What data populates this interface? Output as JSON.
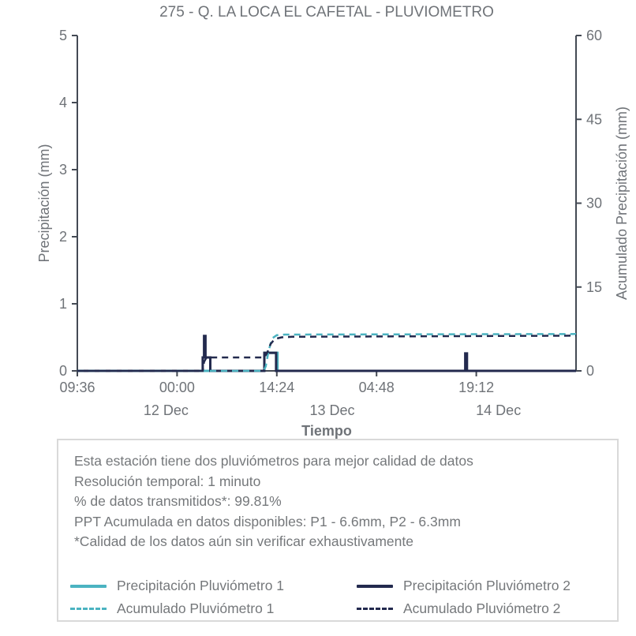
{
  "title": "275 - Q. LA LOCA EL CAFETAL - PLUVIOMETRO",
  "colors": {
    "teal": "#4BB3C1",
    "navy": "#232A4E",
    "text_gray": "#6F7378",
    "axis_gray": "#444A54",
    "border_gray": "#D9D9D9"
  },
  "chart_data": {
    "type": "line",
    "title": "275 - Q. LA LOCA EL CAFETAL - PLUVIOMETRO",
    "xlabel": "Tiempo",
    "ylabel_left": "Precipitación (mm)",
    "ylabel_right": "Acumulado Precipitación (mm)",
    "ylim_left": [
      0,
      5
    ],
    "ylim_right": [
      0,
      60
    ],
    "grid": "off",
    "legend_position": "bottom-box",
    "x_hours_total": 72,
    "x_ticks": [
      {
        "t": 0.0,
        "label": "09:36"
      },
      {
        "t": 14.4,
        "label": "00:00"
      },
      {
        "t": 28.8,
        "label": "14:24"
      },
      {
        "t": 43.2,
        "label": "04:48"
      },
      {
        "t": 57.6,
        "label": "19:12"
      }
    ],
    "x_date_labels": [
      {
        "t": 12.8,
        "label": "12 Dec"
      },
      {
        "t": 36.8,
        "label": "13 Dec"
      },
      {
        "t": 60.8,
        "label": "14 Dec"
      }
    ],
    "y_ticks_left": [
      "0",
      "1",
      "2",
      "3",
      "4",
      "5"
    ],
    "y_ticks_left_values": [
      0,
      1,
      2,
      3,
      4,
      5
    ],
    "y_ticks_right": [
      "0",
      "15",
      "30",
      "45",
      "60"
    ],
    "y_ticks_right_values": [
      0,
      15,
      30,
      45,
      60
    ],
    "series": [
      {
        "name": "Precipitación Pluviómetro 1",
        "axis": "left",
        "style": "solid",
        "color": "teal",
        "width": 3,
        "points": [
          [
            0,
            0
          ],
          [
            27.0,
            0
          ],
          [
            27.0,
            0.27
          ],
          [
            28.9,
            0.27
          ],
          [
            28.9,
            0
          ],
          [
            72,
            0
          ]
        ]
      },
      {
        "name": "Precipitación Pluviómetro 2",
        "axis": "left",
        "style": "solid",
        "color": "navy",
        "width": 3,
        "points": [
          [
            0,
            0
          ],
          [
            18.1,
            0
          ],
          [
            18.1,
            0.2
          ],
          [
            18.3,
            0.2
          ],
          [
            18.3,
            0.52
          ],
          [
            18.5,
            0.52
          ],
          [
            18.5,
            0.2
          ],
          [
            19.2,
            0.2
          ],
          [
            19.2,
            0
          ],
          [
            27.0,
            0
          ],
          [
            27.0,
            0.27
          ],
          [
            28.7,
            0.27
          ],
          [
            28.7,
            0
          ],
          [
            56.0,
            0
          ],
          [
            56.0,
            0.26
          ],
          [
            56.25,
            0.26
          ],
          [
            56.25,
            0
          ],
          [
            72,
            0
          ]
        ]
      },
      {
        "name": "Acumulado Pluviómetro 1",
        "axis": "right",
        "style": "dashed",
        "color": "teal",
        "width": 2.5,
        "points": [
          [
            0,
            0
          ],
          [
            26.9,
            0
          ],
          [
            27.2,
            0.8
          ],
          [
            27.6,
            3.5
          ],
          [
            28.1,
            5.8
          ],
          [
            28.8,
            6.4
          ],
          [
            30,
            6.5
          ],
          [
            72,
            6.6
          ]
        ]
      },
      {
        "name": "Acumulado Pluviómetro 2",
        "axis": "right",
        "style": "dashed",
        "color": "navy",
        "width": 2.5,
        "points": [
          [
            0,
            0
          ],
          [
            18.1,
            0
          ],
          [
            18.3,
            1.6
          ],
          [
            18.6,
            2.3
          ],
          [
            18.9,
            2.4
          ],
          [
            27.0,
            2.4
          ],
          [
            27.4,
            3.2
          ],
          [
            27.9,
            4.8
          ],
          [
            28.5,
            5.7
          ],
          [
            29.5,
            6.0
          ],
          [
            31,
            6.1
          ],
          [
            72,
            6.3
          ]
        ]
      }
    ]
  },
  "info_box": {
    "lines": [
      "Esta estación tiene dos pluviómetros para mejor calidad de datos",
      "Resolución temporal: 1 minuto",
      "% de datos transmitidos*: 99.81%",
      "PPT Acumulada en datos disponibles: P1 - 6.6mm, P2 - 6.3mm",
      "*Calidad de los datos aún sin verificar exhaustivamente"
    ]
  },
  "legend": {
    "items": [
      {
        "label": "Precipitación Pluviómetro 1",
        "style": "solid",
        "color": "teal"
      },
      {
        "label": "Precipitación Pluviómetro 2",
        "style": "solid",
        "color": "navy"
      },
      {
        "label": "Acumulado Pluviómetro 1",
        "style": "dashed",
        "color": "teal"
      },
      {
        "label": "Acumulado Pluviómetro 2",
        "style": "dashed",
        "color": "navy"
      }
    ]
  }
}
